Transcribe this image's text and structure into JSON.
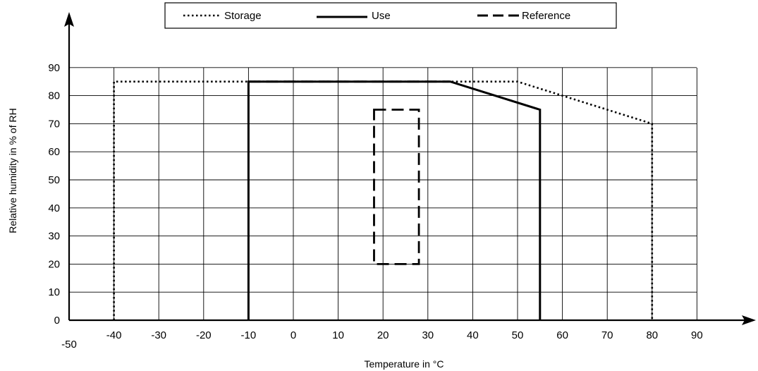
{
  "chart_data": {
    "type": "line",
    "title": "",
    "xlabel": "Temperature in °C",
    "ylabel": "Relative humidity in % of RH",
    "xlim": [
      -50,
      90
    ],
    "ylim": [
      0,
      90
    ],
    "x_ticks": [
      -50,
      -40,
      -30,
      -20,
      -10,
      0,
      10,
      20,
      30,
      40,
      50,
      60,
      70,
      80,
      90
    ],
    "y_ticks": [
      0,
      10,
      20,
      30,
      40,
      50,
      60,
      70,
      80,
      90
    ],
    "grid": true,
    "legend_position": "top",
    "series": [
      {
        "name": "Storage",
        "style": "dotted",
        "points": [
          [
            -40,
            0
          ],
          [
            -40,
            85
          ],
          [
            50,
            85
          ],
          [
            80,
            70
          ],
          [
            80,
            0
          ]
        ]
      },
      {
        "name": "Use",
        "style": "solid",
        "points": [
          [
            -10,
            0
          ],
          [
            -10,
            85
          ],
          [
            35,
            85
          ],
          [
            55,
            75
          ],
          [
            55,
            0
          ]
        ]
      },
      {
        "name": "Reference",
        "style": "dashed",
        "points": [
          [
            -10,
            85
          ],
          [
            35,
            85
          ]
        ],
        "rectangle": [
          [
            18,
            20
          ],
          [
            28,
            75
          ]
        ]
      }
    ],
    "colors": {
      "line": "#000000",
      "grid": "#000000",
      "background": "#ffffff"
    }
  }
}
